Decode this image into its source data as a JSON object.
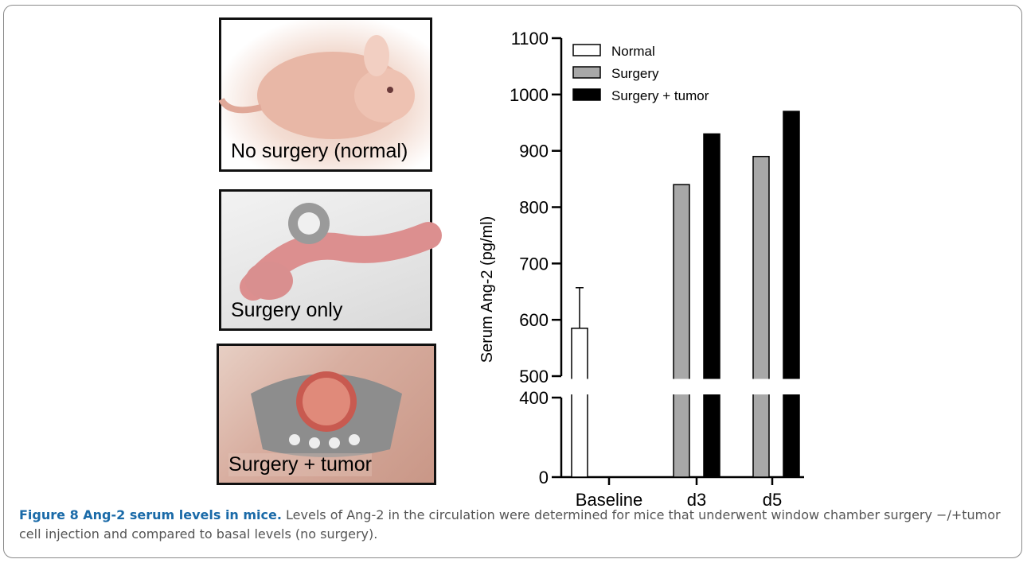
{
  "photos": [
    {
      "caption": "No surgery (normal)"
    },
    {
      "caption": "Surgery only"
    },
    {
      "caption": "Surgery + tumor"
    }
  ],
  "chart_data": {
    "type": "bar",
    "ylabel": "Serum Ang-2 (pg/ml)",
    "xlabel": "",
    "categories": [
      "Baseline",
      "d3",
      "d5"
    ],
    "series": [
      {
        "name": "Normal",
        "color": "#ffffff",
        "values": [
          585,
          null,
          null
        ],
        "error": [
          72,
          null,
          null
        ]
      },
      {
        "name": "Surgery",
        "color": "#a8a8a8",
        "values": [
          null,
          840,
          890
        ]
      },
      {
        "name": "Surgery + tumor",
        "color": "#000000",
        "values": [
          null,
          930,
          970
        ]
      }
    ],
    "y_ticks": [
      0,
      400,
      500,
      600,
      700,
      800,
      900,
      1000,
      1100
    ],
    "y_axis_break": [
      400,
      500
    ],
    "ylim": [
      0,
      1100
    ],
    "legend_position": "top-left"
  },
  "caption": {
    "title": "Figure 8 Ang-2 serum levels in mice.",
    "text": " Levels of Ang-2 in the circulation were determined for mice that underwent window chamber surgery −/+tumor cell injection and compared to basal levels (no surgery)."
  }
}
